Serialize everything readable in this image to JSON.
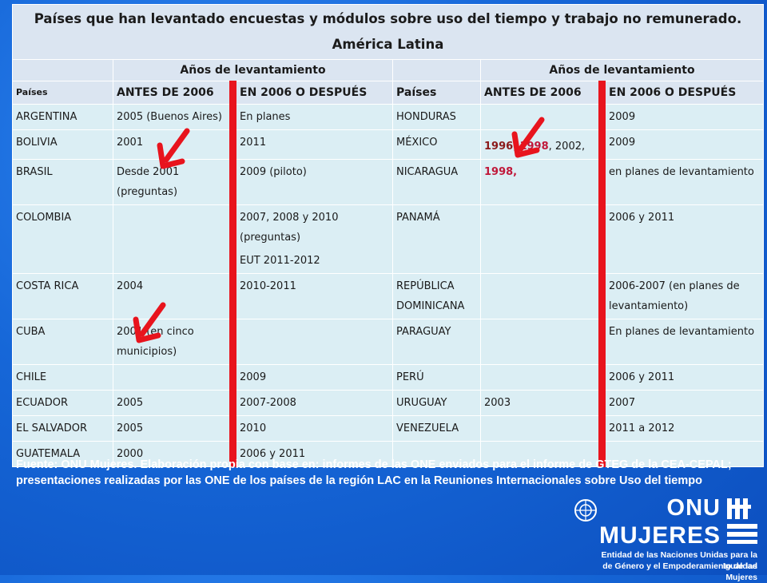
{
  "title": "Países que han levantado encuestas y módulos sobre uso del tiempo y trabajo no remunerado.  América Latina",
  "group_header": "Años de levantamiento",
  "columns": {
    "paises": "Países",
    "antes": "ANTES DE 2006",
    "despues": "EN 2006 O DESPUÉS"
  },
  "rows": [
    {
      "l_pais": "ARGENTINA",
      "l_antes": "2005  (Buenos Aires)",
      "l_despues": "En planes",
      "r_pais": "HONDURAS",
      "r_antes": "",
      "r_despues": "2009"
    },
    {
      "l_pais": "BOLIVIA",
      "l_antes": "2001",
      "l_despues": "2011",
      "r_pais": "MÉXICO",
      "r_antes_parts": [
        "1996",
        ", ",
        "1998",
        ", 2002,"
      ],
      "r_despues": "2009"
    },
    {
      "l_pais": "BRASIL",
      "l_antes": "Desde 2001 (preguntas)",
      "l_despues": "2009 (piloto)",
      "r_pais": "NICARAGUA",
      "r_antes": "1998,",
      "r_despues": "en planes de levantamiento"
    },
    {
      "l_pais": "COLOMBIA",
      "l_antes": "",
      "l_despues": "2007, 2008 y 2010 (preguntas)",
      "l_despues_2": "EUT  2011-2012",
      "r_pais": "PANAMÁ",
      "r_antes": "",
      "r_despues": "2006  y 2011"
    },
    {
      "l_pais": "COSTA RICA",
      "l_antes": "2004",
      "l_despues": "2010-2011",
      "r_pais": "REPÚBLICA DOMINICANA",
      "r_antes": "",
      "r_despues": "2006-2007 (en planes de levantamiento)"
    },
    {
      "l_pais": "CUBA",
      "l_antes": "2001 (en cinco municipios)",
      "l_despues": "",
      "r_pais": "PARAGUAY",
      "r_antes": "",
      "r_despues": "En planes de levantamiento"
    },
    {
      "l_pais": "CHILE",
      "l_antes": "",
      "l_despues": "2009",
      "r_pais": "PERÚ",
      "r_antes": "",
      "r_despues": "2006 y 2011"
    },
    {
      "l_pais": "ECUADOR",
      "l_antes": "2005",
      "l_despues": " 2007-2008",
      "r_pais": "URUGUAY",
      "r_antes": "2003",
      "r_despues": "2007"
    },
    {
      "l_pais": "EL SALVADOR",
      "l_antes": "2005",
      "l_despues": "2010",
      "r_pais": "VENEZUELA",
      "r_antes": "",
      "r_despues": "2011 a 2012"
    },
    {
      "l_pais": "GUATEMALA",
      "l_antes": "2000",
      "l_despues": "2006  y 2011",
      "r_pais": "",
      "r_antes": "",
      "r_despues": ""
    }
  ],
  "source_note": "Fuente: ONU Mujeres. Elaboración  propia con base en: informes de las ONE enviados para el informe de GTEG de la CEA-CEPAL;   presentaciones realizadas por las ONE de los países de la región LAC en la Reuniones Internacionales  sobre Uso del tiempo",
  "logo": {
    "onu": "ONU",
    "mujeres": "MUJERES",
    "tagline_1": "Entidad de las Naciones Unidas para la Igualdad",
    "tagline_2": "de Género y el Empoderamiento de las Mujeres"
  },
  "colors": {
    "background": "#1667d8",
    "table_cell": "#dbeef4",
    "header_cell": "#dbe5f1",
    "red_separator": "#e8141d",
    "arrow": "#e8141d",
    "highlight_text": "#c0183a"
  },
  "icons": [
    "red-arrow-icon",
    "un-emblem-icon"
  ]
}
